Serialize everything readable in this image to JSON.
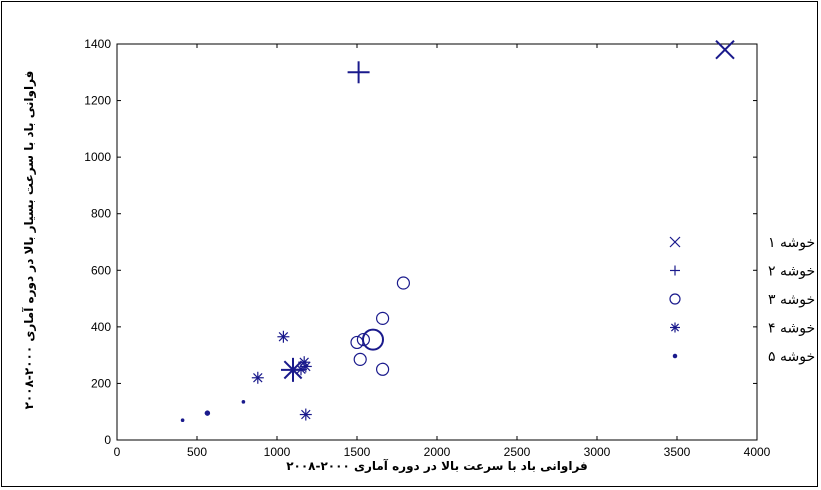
{
  "chart_data": {
    "type": "scatter",
    "title": "",
    "xlabel": "فراوانی باد با سرعت بالا در دوره آماری ۲۰۰۰-۲۰۰۸",
    "ylabel": "فراوانی باد با سرعت بسیار بالا در دوره آماری ۲۰۰۰-۲۰۰۸",
    "xlim": [
      0,
      4000
    ],
    "ylim": [
      0,
      1400
    ],
    "xticks": [
      "0",
      "500",
      "1000",
      "1500",
      "2000",
      "2500",
      "3000",
      "3500",
      "4000"
    ],
    "yticks": [
      "0",
      "200",
      "400",
      "600",
      "800",
      "1000",
      "1200",
      "1400"
    ],
    "grid": false,
    "legend_position": "right",
    "color": "#1a1a8c",
    "series": [
      {
        "name": "خوشه ۱",
        "marker": "x",
        "points": [],
        "centroid": [
          3800,
          1380
        ]
      },
      {
        "name": "خوشه ۲",
        "marker": "plus",
        "points": [],
        "centroid": [
          1510,
          1300
        ]
      },
      {
        "name": "خوشه ۳",
        "marker": "circle",
        "points": [
          [
            1790,
            555
          ],
          [
            1660,
            430
          ],
          [
            1500,
            345
          ],
          [
            1540,
            355
          ],
          [
            1520,
            285
          ],
          [
            1660,
            250
          ]
        ],
        "centroid": [
          1600,
          355
        ]
      },
      {
        "name": "خوشه ۴",
        "marker": "star",
        "points": [
          [
            1040,
            365
          ],
          [
            880,
            220
          ],
          [
            1170,
            275
          ],
          [
            1180,
            260
          ],
          [
            1180,
            90
          ],
          [
            1150,
            250
          ]
        ],
        "centroid": [
          1100,
          248
        ]
      },
      {
        "name": "خوشه ۵",
        "marker": "dot",
        "points": [
          [
            410,
            70
          ],
          [
            560,
            95
          ],
          [
            570,
            95
          ],
          [
            790,
            135
          ]
        ],
        "centroid": [
          565,
          95
        ]
      }
    ]
  }
}
